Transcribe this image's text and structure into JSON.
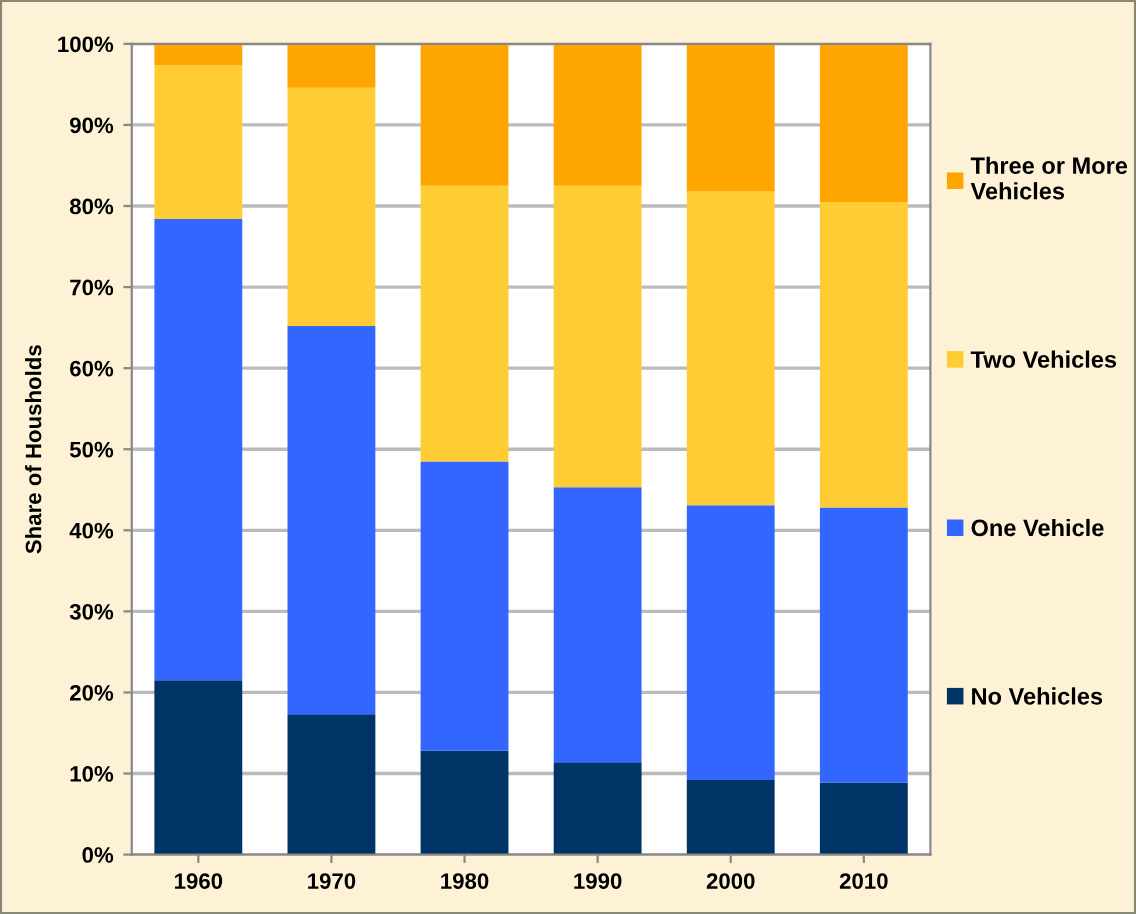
{
  "chart_data": {
    "type": "bar",
    "stacked": true,
    "ylabel": "Share of Housholds",
    "categories": [
      "1960",
      "1970",
      "1980",
      "1990",
      "2000",
      "2010"
    ],
    "series": [
      {
        "name": "No Vehicles",
        "color": "#003366",
        "values": [
          21.5,
          17.3,
          12.8,
          11.4,
          9.2,
          8.9
        ]
      },
      {
        "name": "One Vehicle",
        "color": "#3366ff",
        "values": [
          56.9,
          47.9,
          35.7,
          33.9,
          33.9,
          33.9
        ]
      },
      {
        "name": "Two Vehicles",
        "color": "#ffcc33",
        "values": [
          19.0,
          29.4,
          34.0,
          37.2,
          38.7,
          37.7
        ]
      },
      {
        "name": "Three or More\nVehicles",
        "color": "#ffa500",
        "values": [
          2.6,
          5.4,
          17.5,
          17.5,
          18.2,
          19.5
        ]
      }
    ],
    "ylim": [
      0,
      100
    ],
    "yticks": [
      {
        "value": 0,
        "label": "0%"
      },
      {
        "value": 10,
        "label": "10%"
      },
      {
        "value": 20,
        "label": "20%"
      },
      {
        "value": 30,
        "label": "30%"
      },
      {
        "value": 40,
        "label": "40%"
      },
      {
        "value": 50,
        "label": "50%"
      },
      {
        "value": 60,
        "label": "60%"
      },
      {
        "value": 70,
        "label": "70%"
      },
      {
        "value": 80,
        "label": "80%"
      },
      {
        "value": 90,
        "label": "90%"
      },
      {
        "value": 100,
        "label": "100%"
      }
    ],
    "grid": "y",
    "legend": "right"
  }
}
